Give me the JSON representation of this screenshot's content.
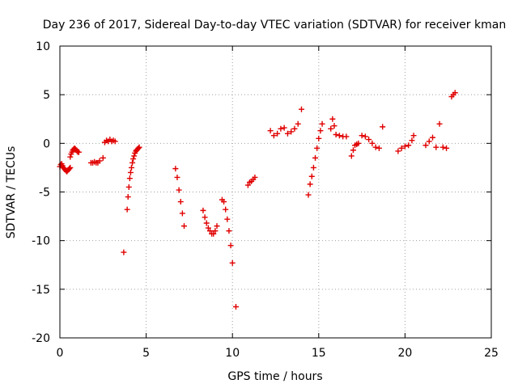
{
  "chart_data": {
    "type": "scatter",
    "title": "Day 236 of 2017, Sidereal Day-to-day VTEC variation (SDTVAR) for receiver kman",
    "xlabel": "GPS time / hours",
    "ylabel": "SDTVAR / TECUs",
    "xlim": [
      0,
      25
    ],
    "ylim": [
      -20,
      10
    ],
    "x_ticks": [
      0,
      5,
      10,
      15,
      20,
      25
    ],
    "y_ticks": [
      -20,
      -15,
      -10,
      -5,
      0,
      5,
      10
    ],
    "x_tick_labels": [
      "0",
      "5",
      "10",
      "15",
      "20",
      "25"
    ],
    "y_tick_labels": [
      "-20",
      "-15",
      "-10",
      "-5",
      "0",
      "5",
      "10"
    ],
    "grid": true,
    "marker": "+",
    "color": "#e00000",
    "series": [
      {
        "name": "SDTVAR",
        "segments": [
          {
            "x": [
              0.0,
              0.05,
              0.1,
              0.15,
              0.2,
              0.25,
              0.3,
              0.35,
              0.4,
              0.45,
              0.5,
              0.55,
              0.6
            ],
            "y": [
              -2.4,
              -2.2,
              -2.1,
              -2.3,
              -2.5,
              -2.6,
              -2.7,
              -2.8,
              -2.9,
              -2.8,
              -2.7,
              -2.6,
              -2.5
            ]
          },
          {
            "x": [
              0.6,
              0.65,
              0.7,
              0.75,
              0.8,
              0.85,
              0.9,
              0.95,
              1.0,
              1.05,
              1.1
            ],
            "y": [
              -1.4,
              -1.1,
              -0.9,
              -0.7,
              -0.6,
              -0.5,
              -0.6,
              -0.7,
              -0.8,
              -0.9,
              -0.9
            ]
          },
          {
            "x": [
              1.8,
              1.9,
              2.0,
              2.1,
              2.2,
              2.3,
              2.5
            ],
            "y": [
              -2.0,
              -2.0,
              -1.9,
              -2.0,
              -2.0,
              -1.8,
              -1.5
            ]
          },
          {
            "x": [
              2.6,
              2.7,
              2.8,
              2.9,
              3.0,
              3.1,
              3.2
            ],
            "y": [
              0.1,
              0.3,
              0.2,
              0.4,
              0.2,
              0.3,
              0.2
            ]
          },
          {
            "x": [
              3.7
            ],
            "y": [
              -11.2
            ]
          },
          {
            "x": [
              3.9,
              3.95,
              4.0,
              4.05,
              4.1,
              4.15,
              4.2,
              4.25,
              4.3,
              4.35,
              4.4,
              4.45,
              4.5,
              4.55,
              4.6
            ],
            "y": [
              -6.8,
              -5.5,
              -4.5,
              -3.6,
              -3.0,
              -2.5,
              -2.0,
              -1.6,
              -1.3,
              -1.0,
              -0.8,
              -0.7,
              -0.6,
              -0.5,
              -0.4
            ]
          },
          {
            "x": [
              6.7,
              6.8,
              6.9,
              7.0,
              7.1,
              7.2
            ],
            "y": [
              -2.6,
              -3.5,
              -4.8,
              -6.0,
              -7.2,
              -8.5
            ]
          },
          {
            "x": [
              8.3,
              8.4,
              8.5,
              8.6,
              8.7,
              8.8,
              8.9,
              9.0,
              9.1
            ],
            "y": [
              -6.9,
              -7.6,
              -8.2,
              -8.7,
              -9.0,
              -9.3,
              -9.3,
              -9.0,
              -8.5
            ]
          },
          {
            "x": [
              9.4,
              9.5,
              9.6,
              9.7,
              9.8,
              9.9,
              10.0
            ],
            "y": [
              -5.8,
              -6.0,
              -6.8,
              -7.8,
              -9.0,
              -10.5,
              -12.3
            ]
          },
          {
            "x": [
              10.2
            ],
            "y": [
              -16.8
            ]
          },
          {
            "x": [
              10.9,
              11.0,
              11.1,
              11.2,
              11.3
            ],
            "y": [
              -4.3,
              -4.0,
              -3.9,
              -3.7,
              -3.5
            ]
          },
          {
            "x": [
              12.2,
              12.4,
              12.6,
              12.8,
              13.0,
              13.2,
              13.4,
              13.6,
              13.8,
              14.0
            ],
            "y": [
              1.3,
              0.8,
              1.0,
              1.5,
              1.6,
              1.0,
              1.2,
              1.5,
              2.0,
              3.5
            ]
          },
          {
            "x": [
              14.4,
              14.5,
              14.6,
              14.7,
              14.8,
              14.9,
              15.0,
              15.1,
              15.2
            ],
            "y": [
              -5.3,
              -4.2,
              -3.4,
              -2.5,
              -1.5,
              -0.5,
              0.5,
              1.3,
              2.0
            ]
          },
          {
            "x": [
              15.7,
              15.8,
              15.9,
              16.0,
              16.2,
              16.4,
              16.6
            ],
            "y": [
              1.5,
              2.5,
              1.8,
              0.9,
              0.8,
              0.7,
              0.7
            ]
          },
          {
            "x": [
              16.9,
              17.0,
              17.1,
              17.2,
              17.3
            ],
            "y": [
              -1.3,
              -0.7,
              -0.2,
              -0.1,
              0.0
            ]
          },
          {
            "x": [
              17.5,
              17.7,
              17.9,
              18.1,
              18.3,
              18.5,
              18.7
            ],
            "y": [
              0.8,
              0.7,
              0.4,
              0.0,
              -0.4,
              -0.5,
              1.7
            ]
          },
          {
            "x": [
              19.6,
              19.8,
              20.0,
              20.2,
              20.4,
              20.5
            ],
            "y": [
              -0.8,
              -0.5,
              -0.3,
              -0.2,
              0.3,
              0.8
            ]
          },
          {
            "x": [
              21.2,
              21.4,
              21.6,
              21.8,
              22.0,
              22.2,
              22.4
            ],
            "y": [
              -0.2,
              0.2,
              0.6,
              -0.4,
              2.0,
              -0.4,
              -0.5
            ]
          },
          {
            "x": [
              22.7,
              22.8,
              22.9
            ],
            "y": [
              4.8,
              5.0,
              5.2
            ]
          }
        ]
      }
    ]
  }
}
